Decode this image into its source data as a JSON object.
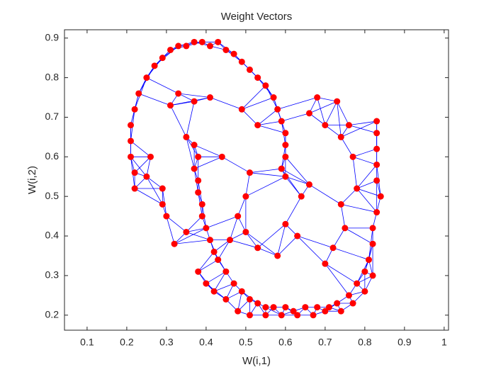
{
  "chart_data": {
    "type": "scatter",
    "title": "Weight Vectors",
    "x_label": "W(i,1)",
    "y_label": "W(i,2)",
    "x": [
      0.22,
      0.21,
      0.21,
      0.21,
      0.22,
      0.23,
      0.25,
      0.27,
      0.29,
      0.31,
      0.33,
      0.35,
      0.37,
      0.39,
      0.41,
      0.43,
      0.45,
      0.47,
      0.49,
      0.51,
      0.53,
      0.55,
      0.57,
      0.58,
      0.59,
      0.6,
      0.6,
      0.6,
      0.59,
      0.6,
      0.37,
      0.38,
      0.37,
      0.38,
      0.38,
      0.39,
      0.39,
      0.4,
      0.41,
      0.42,
      0.43,
      0.45,
      0.47,
      0.49,
      0.51,
      0.53,
      0.55,
      0.57,
      0.6,
      0.62,
      0.65,
      0.68,
      0.71,
      0.73,
      0.76,
      0.78,
      0.8,
      0.81,
      0.82,
      0.82,
      0.83,
      0.84,
      0.83,
      0.83,
      0.83,
      0.83,
      0.83,
      0.38,
      0.4,
      0.42,
      0.45,
      0.48,
      0.51,
      0.55,
      0.59,
      0.63,
      0.67,
      0.7,
      0.74,
      0.77,
      0.8,
      0.82,
      0.29,
      0.3,
      0.26,
      0.25,
      0.31,
      0.33,
      0.37,
      0.41,
      0.35,
      0.44,
      0.49,
      0.53,
      0.51,
      0.5,
      0.48,
      0.5,
      0.46,
      0.53,
      0.58,
      0.6,
      0.64,
      0.66,
      0.63,
      0.7,
      0.72,
      0.74,
      0.75,
      0.78,
      0.77,
      0.74,
      0.76,
      0.7,
      0.68,
      0.73,
      0.66,
      0.35,
      0.32,
      0.29,
      0.22
    ],
    "values": [
      0.56,
      0.6,
      0.64,
      0.68,
      0.72,
      0.76,
      0.8,
      0.83,
      0.85,
      0.87,
      0.88,
      0.88,
      0.89,
      0.89,
      0.88,
      0.89,
      0.87,
      0.86,
      0.84,
      0.82,
      0.8,
      0.78,
      0.75,
      0.72,
      0.69,
      0.66,
      0.63,
      0.6,
      0.57,
      0.55,
      0.63,
      0.6,
      0.57,
      0.54,
      0.51,
      0.48,
      0.45,
      0.42,
      0.39,
      0.36,
      0.34,
      0.31,
      0.28,
      0.26,
      0.24,
      0.23,
      0.22,
      0.22,
      0.22,
      0.21,
      0.22,
      0.22,
      0.22,
      0.23,
      0.25,
      0.28,
      0.31,
      0.34,
      0.38,
      0.42,
      0.46,
      0.5,
      0.54,
      0.58,
      0.62,
      0.66,
      0.69,
      0.31,
      0.28,
      0.26,
      0.24,
      0.21,
      0.2,
      0.2,
      0.2,
      0.2,
      0.2,
      0.21,
      0.21,
      0.23,
      0.26,
      0.3,
      0.48,
      0.45,
      0.6,
      0.55,
      0.73,
      0.76,
      0.74,
      0.75,
      0.65,
      0.6,
      0.72,
      0.68,
      0.56,
      0.5,
      0.45,
      0.41,
      0.39,
      0.37,
      0.35,
      0.43,
      0.5,
      0.53,
      0.4,
      0.33,
      0.37,
      0.48,
      0.42,
      0.52,
      0.6,
      0.65,
      0.68,
      0.68,
      0.75,
      0.74,
      0.71,
      0.41,
      0.38,
      0.52,
      0.52
    ],
    "color": "#ff0000",
    "line_color": "#0000ff",
    "xlim": [
      0.043,
      1.011
    ],
    "ylim": [
      0.162,
      0.921
    ],
    "xticks": [
      0.1,
      0.2,
      0.3,
      0.4,
      0.5,
      0.6,
      0.7,
      0.8,
      0.9,
      1
    ],
    "yticks": [
      0.2,
      0.3,
      0.4,
      0.5,
      0.6,
      0.7,
      0.8,
      0.9
    ]
  }
}
